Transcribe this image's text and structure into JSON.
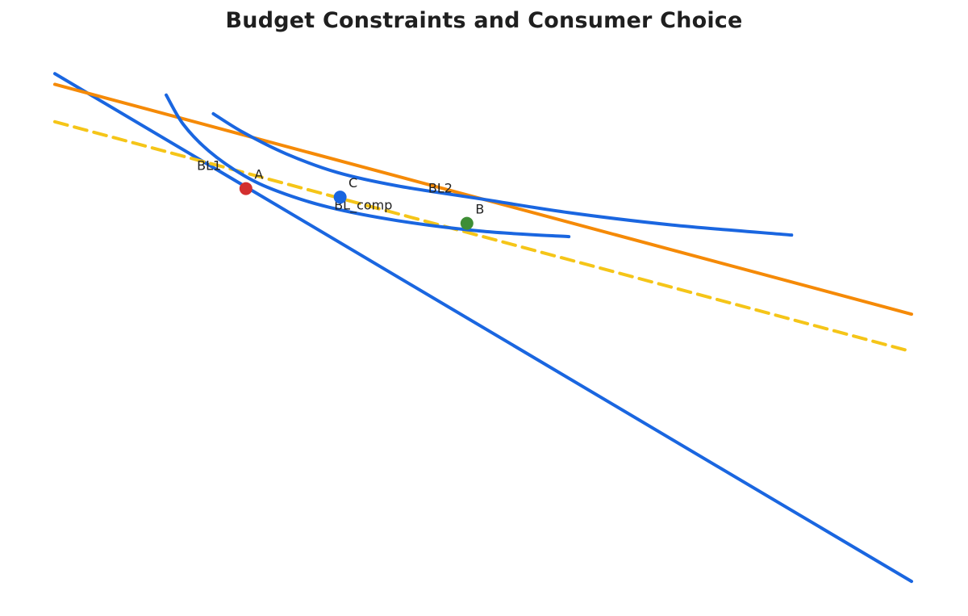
{
  "chart_data": {
    "type": "line",
    "title": "Budget Constraints and Consumer Choice",
    "xlabel": "",
    "ylabel": "",
    "grid": false,
    "legend": "none",
    "xlim": [
      0,
      10
    ],
    "ylim": [
      0,
      10
    ],
    "budget_lines": [
      {
        "label": "BL1",
        "color": "#1a66e0",
        "dash": false,
        "x": [
          0,
          10
        ],
        "y": [
          9.8,
          0.3
        ]
      },
      {
        "label": "BL2",
        "color": "#f58a07",
        "dash": false,
        "x": [
          0,
          10
        ],
        "y": [
          9.6,
          5.3
        ]
      },
      {
        "label": "BL_comp",
        "color": "#f5c518",
        "dash": true,
        "x": [
          0,
          10
        ],
        "y": [
          8.9,
          4.6
        ]
      }
    ],
    "indifference_curves": [
      {
        "color": "#1a66e0",
        "x": [
          1.3,
          1.5,
          1.8,
          2.2,
          2.6,
          3.2,
          4.0,
          5.0,
          6.0
        ],
        "y": [
          9.4,
          8.85,
          8.35,
          7.9,
          7.6,
          7.3,
          7.05,
          6.85,
          6.75
        ]
      },
      {
        "color": "#1a66e0",
        "x": [
          1.85,
          2.2,
          2.7,
          3.3,
          4.0,
          5.0,
          6.0,
          7.2,
          8.6
        ],
        "y": [
          9.05,
          8.7,
          8.3,
          7.95,
          7.7,
          7.45,
          7.2,
          6.97,
          6.78
        ]
      }
    ],
    "points": [
      {
        "label": "A",
        "x": 2.23,
        "y": 7.65,
        "color": "#d32f2f"
      },
      {
        "label": "C",
        "x": 3.33,
        "y": 7.49,
        "color": "#1a66e0"
      },
      {
        "label": "B",
        "x": 4.81,
        "y": 7.0,
        "color": "#3e8e35"
      }
    ]
  }
}
